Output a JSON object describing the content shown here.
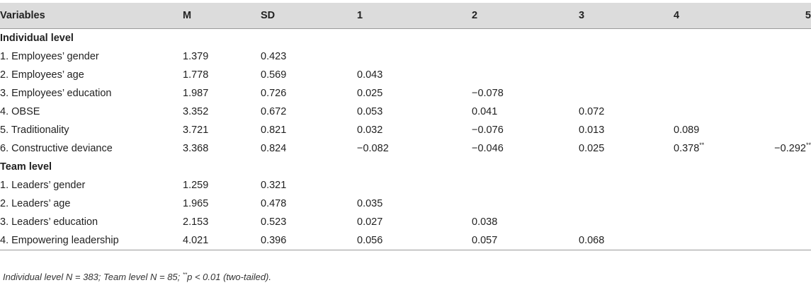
{
  "table": {
    "headers": [
      "Variables",
      "M",
      "SD",
      "1",
      "2",
      "3",
      "4",
      "5"
    ],
    "sections": [
      {
        "title": "Individual level",
        "rows": [
          {
            "variable": "1. Employees’ gender",
            "m": "1.379",
            "sd": "0.423",
            "c1": "",
            "c2": "",
            "c3": "",
            "c4": "",
            "c4_sig": "",
            "c5": "",
            "c5_sig": ""
          },
          {
            "variable": "2. Employees’ age",
            "m": "1.778",
            "sd": "0.569",
            "c1": "0.043",
            "c2": "",
            "c3": "",
            "c4": "",
            "c4_sig": "",
            "c5": "",
            "c5_sig": ""
          },
          {
            "variable": "3. Employees’ education",
            "m": "1.987",
            "sd": "0.726",
            "c1": "0.025",
            "c2": "−0.078",
            "c3": "",
            "c4": "",
            "c4_sig": "",
            "c5": "",
            "c5_sig": ""
          },
          {
            "variable": "4. OBSE",
            "m": "3.352",
            "sd": "0.672",
            "c1": "0.053",
            "c2": "0.041",
            "c3": "0.072",
            "c4": "",
            "c4_sig": "",
            "c5": "",
            "c5_sig": ""
          },
          {
            "variable": "5. Traditionality",
            "m": "3.721",
            "sd": "0.821",
            "c1": "0.032",
            "c2": "−0.076",
            "c3": "0.013",
            "c4": "0.089",
            "c4_sig": "",
            "c5": "",
            "c5_sig": ""
          },
          {
            "variable": "6. Constructive deviance",
            "m": "3.368",
            "sd": "0.824",
            "c1": "−0.082",
            "c2": "−0.046",
            "c3": "0.025",
            "c4": "0.378",
            "c4_sig": "**",
            "c5": "−0.292",
            "c5_sig": "**"
          }
        ]
      },
      {
        "title": "Team level",
        "rows": [
          {
            "variable": "1. Leaders’ gender",
            "m": "1.259",
            "sd": "0.321",
            "c1": "",
            "c2": "",
            "c3": "",
            "c4": "",
            "c4_sig": "",
            "c5": "",
            "c5_sig": ""
          },
          {
            "variable": "2. Leaders’ age",
            "m": "1.965",
            "sd": "0.478",
            "c1": "0.035",
            "c2": "",
            "c3": "",
            "c4": "",
            "c4_sig": "",
            "c5": "",
            "c5_sig": ""
          },
          {
            "variable": "3. Leaders’ education",
            "m": "2.153",
            "sd": "0.523",
            "c1": "0.027",
            "c2": "0.038",
            "c3": "",
            "c4": "",
            "c4_sig": "",
            "c5": "",
            "c5_sig": ""
          },
          {
            "variable": "4. Empowering leadership",
            "m": "4.021",
            "sd": "0.396",
            "c1": "0.056",
            "c2": "0.057",
            "c3": "0.068",
            "c4": "",
            "c4_sig": "",
            "c5": "",
            "c5_sig": ""
          }
        ]
      }
    ]
  },
  "footnote": {
    "main": "Individual level N = 383; Team level N = 85; ",
    "sig_mark": "**",
    "sig_text": "p < 0.01 (two-tailed)."
  }
}
